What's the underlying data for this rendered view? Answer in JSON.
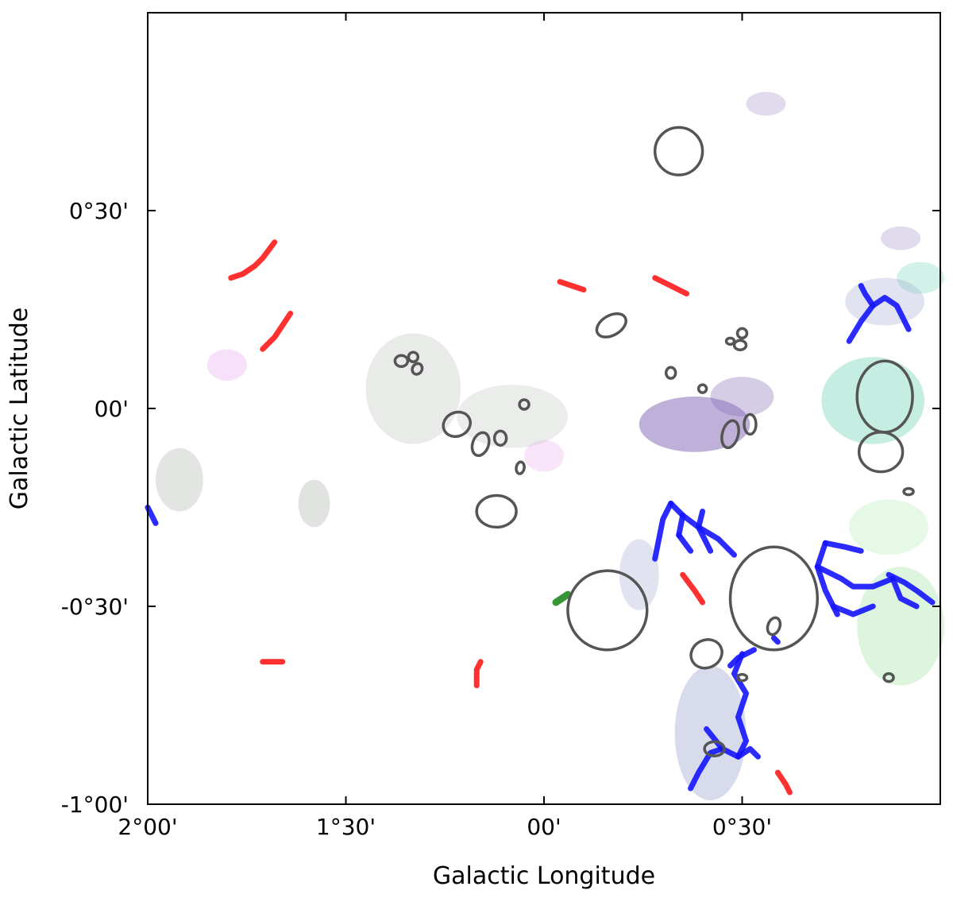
{
  "chart_data": {
    "type": "map",
    "xlabel": "Galactic Longitude",
    "ylabel": "Galactic Latitude",
    "x_ticks": [
      {
        "value": 2.0,
        "label": "2°00'"
      },
      {
        "value": 1.5,
        "label": "1°30'"
      },
      {
        "value": 1.0,
        "label": "00'"
      },
      {
        "value": 0.5,
        "label": "0°30'"
      }
    ],
    "y_ticks": [
      {
        "value": 0.5,
        "label": "0°30'"
      },
      {
        "value": 0.0,
        "label": "00'"
      },
      {
        "value": -0.5,
        "label": "-0°30'"
      },
      {
        "value": -1.0,
        "label": "-1°00'"
      }
    ],
    "xlim": [
      2.0,
      0.0
    ],
    "ylim": [
      -1.0,
      1.0
    ],
    "grid": false,
    "colors": {
      "red_filaments": "#ff1a1a",
      "blue_filaments": "#1414ff",
      "green_filament": "#1e8c1e",
      "ellipses": "#555555",
      "purple_cloud": "#8870b8",
      "teal_cloud": "#7fd6bf",
      "green_cloud": "#9be39b",
      "gray_cloud": "#9aa39a",
      "pink_cloud": "#e7a8f0",
      "blue_gray_cloud": "#9aa4cc"
    },
    "red_filaments": [
      [
        [
          1.79,
          0.33
        ],
        [
          1.76,
          0.34
        ],
        [
          1.73,
          0.36
        ],
        [
          1.71,
          0.38
        ],
        [
          1.68,
          0.42
        ]
      ],
      [
        [
          1.71,
          0.15
        ],
        [
          1.68,
          0.18
        ],
        [
          1.66,
          0.21
        ],
        [
          1.64,
          0.24
        ]
      ],
      [
        [
          0.96,
          0.32
        ],
        [
          0.93,
          0.31
        ],
        [
          0.9,
          0.3
        ]
      ],
      [
        [
          0.72,
          0.33
        ],
        [
          0.68,
          0.31
        ],
        [
          0.64,
          0.29
        ]
      ],
      [
        [
          1.71,
          -0.64
        ],
        [
          1.68,
          -0.64
        ],
        [
          1.66,
          -0.64
        ]
      ],
      [
        [
          1.17,
          -0.7
        ],
        [
          1.17,
          -0.66
        ],
        [
          1.16,
          -0.64
        ]
      ],
      [
        [
          0.65,
          -0.42
        ],
        [
          0.62,
          -0.46
        ],
        [
          0.6,
          -0.49
        ]
      ],
      [
        [
          0.41,
          -0.92
        ],
        [
          0.39,
          -0.95
        ],
        [
          0.38,
          -0.97
        ]
      ]
    ],
    "blue_filaments": [
      [
        [
          0.23,
          0.17
        ],
        [
          0.2,
          0.22
        ],
        [
          0.17,
          0.26
        ],
        [
          0.14,
          0.28
        ],
        [
          0.11,
          0.26
        ],
        [
          0.08,
          0.2
        ]
      ],
      [
        [
          0.17,
          0.26
        ],
        [
          0.19,
          0.29
        ],
        [
          0.2,
          0.31
        ]
      ],
      [
        [
          2.0,
          -0.25
        ],
        [
          1.98,
          -0.29
        ]
      ],
      [
        [
          0.68,
          -0.24
        ],
        [
          0.65,
          -0.27
        ],
        [
          0.61,
          -0.3
        ],
        [
          0.58,
          -0.36
        ]
      ],
      [
        [
          0.61,
          -0.3
        ],
        [
          0.6,
          -0.26
        ]
      ],
      [
        [
          0.65,
          -0.27
        ],
        [
          0.66,
          -0.32
        ]
      ],
      [
        [
          0.61,
          -0.3
        ],
        [
          0.56,
          -0.33
        ],
        [
          0.52,
          -0.37
        ]
      ],
      [
        [
          0.68,
          -0.24
        ],
        [
          0.7,
          -0.28
        ],
        [
          0.72,
          -0.38
        ]
      ],
      [
        [
          0.66,
          -0.32
        ],
        [
          0.63,
          -0.36
        ]
      ],
      [
        [
          0.5,
          -0.62
        ],
        [
          0.52,
          -0.67
        ],
        [
          0.49,
          -0.72
        ],
        [
          0.51,
          -0.78
        ],
        [
          0.49,
          -0.84
        ],
        [
          0.51,
          -0.88
        ]
      ],
      [
        [
          0.51,
          -0.88
        ],
        [
          0.48,
          -0.86
        ],
        [
          0.46,
          -0.88
        ]
      ],
      [
        [
          0.51,
          -0.88
        ],
        [
          0.55,
          -0.86
        ],
        [
          0.58,
          -0.87
        ],
        [
          0.61,
          -0.92
        ],
        [
          0.63,
          -0.96
        ]
      ],
      [
        [
          0.55,
          -0.86
        ],
        [
          0.59,
          -0.81
        ]
      ],
      [
        [
          0.47,
          -0.61
        ],
        [
          0.51,
          -0.63
        ],
        [
          0.53,
          -0.65
        ]
      ],
      [
        [
          0.42,
          -0.58
        ],
        [
          0.41,
          -0.59
        ]
      ],
      [
        [
          0.29,
          -0.34
        ],
        [
          0.24,
          -0.35
        ],
        [
          0.2,
          -0.36
        ]
      ],
      [
        [
          0.29,
          -0.34
        ],
        [
          0.31,
          -0.4
        ],
        [
          0.29,
          -0.46
        ],
        [
          0.26,
          -0.52
        ]
      ],
      [
        [
          0.31,
          -0.4
        ],
        [
          0.25,
          -0.43
        ],
        [
          0.22,
          -0.45
        ],
        [
          0.17,
          -0.45
        ],
        [
          0.12,
          -0.43
        ]
      ],
      [
        [
          0.27,
          -0.5
        ],
        [
          0.22,
          -0.52
        ],
        [
          0.17,
          -0.5
        ]
      ],
      [
        [
          0.13,
          -0.42
        ],
        [
          0.09,
          -0.44
        ],
        [
          0.06,
          -0.46
        ],
        [
          0.02,
          -0.49
        ]
      ],
      [
        [
          0.12,
          -0.43
        ],
        [
          0.1,
          -0.48
        ],
        [
          0.06,
          -0.5
        ]
      ]
    ],
    "green_filaments": [
      [
        [
          0.97,
          -0.49
        ],
        [
          0.94,
          -0.47
        ]
      ]
    ],
    "ellipses": [
      {
        "l": 0.66,
        "b": 0.65,
        "a": 0.06,
        "h": 0.06,
        "angle": 0
      },
      {
        "l": 0.83,
        "b": 0.21,
        "a": 0.04,
        "h": 0.025,
        "angle": -30
      },
      {
        "l": 0.5,
        "b": 0.19,
        "a": 0.012,
        "h": 0.012,
        "angle": 0
      },
      {
        "l": 0.505,
        "b": 0.16,
        "a": 0.015,
        "h": 0.012,
        "angle": 0
      },
      {
        "l": 0.53,
        "b": 0.17,
        "a": 0.01,
        "h": 0.008,
        "angle": 0
      },
      {
        "l": 0.68,
        "b": 0.09,
        "a": 0.012,
        "h": 0.014,
        "angle": 0
      },
      {
        "l": 0.6,
        "b": 0.05,
        "a": 0.01,
        "h": 0.01,
        "angle": 0
      },
      {
        "l": 1.36,
        "b": 0.12,
        "a": 0.016,
        "h": 0.014,
        "angle": 0
      },
      {
        "l": 1.33,
        "b": 0.13,
        "a": 0.012,
        "h": 0.012,
        "angle": 0
      },
      {
        "l": 1.32,
        "b": 0.1,
        "a": 0.012,
        "h": 0.014,
        "angle": 30
      },
      {
        "l": 1.05,
        "b": 0.01,
        "a": 0.012,
        "h": 0.012,
        "angle": 0
      },
      {
        "l": 1.22,
        "b": -0.04,
        "a": 0.035,
        "h": 0.03,
        "angle": -25
      },
      {
        "l": 1.16,
        "b": -0.09,
        "a": 0.02,
        "h": 0.03,
        "angle": 20
      },
      {
        "l": 1.11,
        "b": -0.075,
        "a": 0.015,
        "h": 0.018,
        "angle": 0
      },
      {
        "l": 1.06,
        "b": -0.15,
        "a": 0.01,
        "h": 0.015,
        "angle": 10
      },
      {
        "l": 0.53,
        "b": -0.065,
        "a": 0.02,
        "h": 0.035,
        "angle": 15
      },
      {
        "l": 0.48,
        "b": -0.04,
        "a": 0.015,
        "h": 0.025,
        "angle": 0
      },
      {
        "l": 0.14,
        "b": 0.03,
        "a": 0.07,
        "h": 0.09,
        "angle": 0
      },
      {
        "l": 0.15,
        "b": -0.11,
        "a": 0.055,
        "h": 0.05,
        "angle": 0
      },
      {
        "l": 0.08,
        "b": -0.21,
        "a": 0.012,
        "h": 0.008,
        "angle": 0
      },
      {
        "l": 1.12,
        "b": -0.26,
        "a": 0.05,
        "h": 0.04,
        "angle": 0
      },
      {
        "l": 0.84,
        "b": -0.51,
        "a": 0.1,
        "h": 0.1,
        "angle": 0
      },
      {
        "l": 0.42,
        "b": -0.48,
        "a": 0.11,
        "h": 0.13,
        "angle": 0
      },
      {
        "l": 0.42,
        "b": -0.55,
        "a": 0.015,
        "h": 0.022,
        "angle": 20
      },
      {
        "l": 0.59,
        "b": -0.62,
        "a": 0.04,
        "h": 0.035,
        "angle": -25
      },
      {
        "l": 0.5,
        "b": -0.68,
        "a": 0.012,
        "h": 0.008,
        "angle": 0
      },
      {
        "l": 0.57,
        "b": -0.86,
        "a": 0.025,
        "h": 0.018,
        "angle": 0
      },
      {
        "l": 0.13,
        "b": -0.68,
        "a": 0.012,
        "h": 0.01,
        "angle": 0
      }
    ],
    "clouds": [
      {
        "color": "purple_cloud",
        "opacity": 0.55,
        "l": 0.62,
        "b": -0.04,
        "rx": 0.14,
        "ry": 0.07
      },
      {
        "color": "purple_cloud",
        "opacity": 0.35,
        "l": 0.5,
        "b": 0.03,
        "rx": 0.08,
        "ry": 0.05
      },
      {
        "color": "purple_cloud",
        "opacity": 0.25,
        "l": 0.44,
        "b": 0.77,
        "rx": 0.05,
        "ry": 0.03
      },
      {
        "color": "purple_cloud",
        "opacity": 0.25,
        "l": 0.1,
        "b": 0.43,
        "rx": 0.05,
        "ry": 0.03
      },
      {
        "color": "teal_cloud",
        "opacity": 0.45,
        "l": 0.17,
        "b": 0.02,
        "rx": 0.13,
        "ry": 0.11
      },
      {
        "color": "teal_cloud",
        "opacity": 0.35,
        "l": 0.05,
        "b": 0.33,
        "rx": 0.06,
        "ry": 0.04
      },
      {
        "color": "green_cloud",
        "opacity": 0.35,
        "l": 0.1,
        "b": -0.55,
        "rx": 0.11,
        "ry": 0.15
      },
      {
        "color": "green_cloud",
        "opacity": 0.25,
        "l": 0.13,
        "b": -0.3,
        "rx": 0.1,
        "ry": 0.07
      },
      {
        "color": "gray_cloud",
        "opacity": 0.22,
        "l": 1.33,
        "b": 0.05,
        "rx": 0.12,
        "ry": 0.14
      },
      {
        "color": "gray_cloud",
        "opacity": 0.2,
        "l": 1.08,
        "b": -0.02,
        "rx": 0.14,
        "ry": 0.08
      },
      {
        "color": "gray_cloud",
        "opacity": 0.28,
        "l": 1.92,
        "b": -0.18,
        "rx": 0.06,
        "ry": 0.08
      },
      {
        "color": "gray_cloud",
        "opacity": 0.3,
        "l": 1.58,
        "b": -0.24,
        "rx": 0.04,
        "ry": 0.06
      },
      {
        "color": "pink_cloud",
        "opacity": 0.35,
        "l": 1.8,
        "b": 0.11,
        "rx": 0.05,
        "ry": 0.04
      },
      {
        "color": "pink_cloud",
        "opacity": 0.3,
        "l": 1.0,
        "b": -0.12,
        "rx": 0.05,
        "ry": 0.04
      },
      {
        "color": "blue_gray_cloud",
        "opacity": 0.4,
        "l": 0.58,
        "b": -0.82,
        "rx": 0.09,
        "ry": 0.17
      },
      {
        "color": "blue_gray_cloud",
        "opacity": 0.3,
        "l": 0.14,
        "b": 0.27,
        "rx": 0.1,
        "ry": 0.06
      },
      {
        "color": "blue_gray_cloud",
        "opacity": 0.3,
        "l": 0.76,
        "b": -0.42,
        "rx": 0.05,
        "ry": 0.09
      }
    ]
  }
}
